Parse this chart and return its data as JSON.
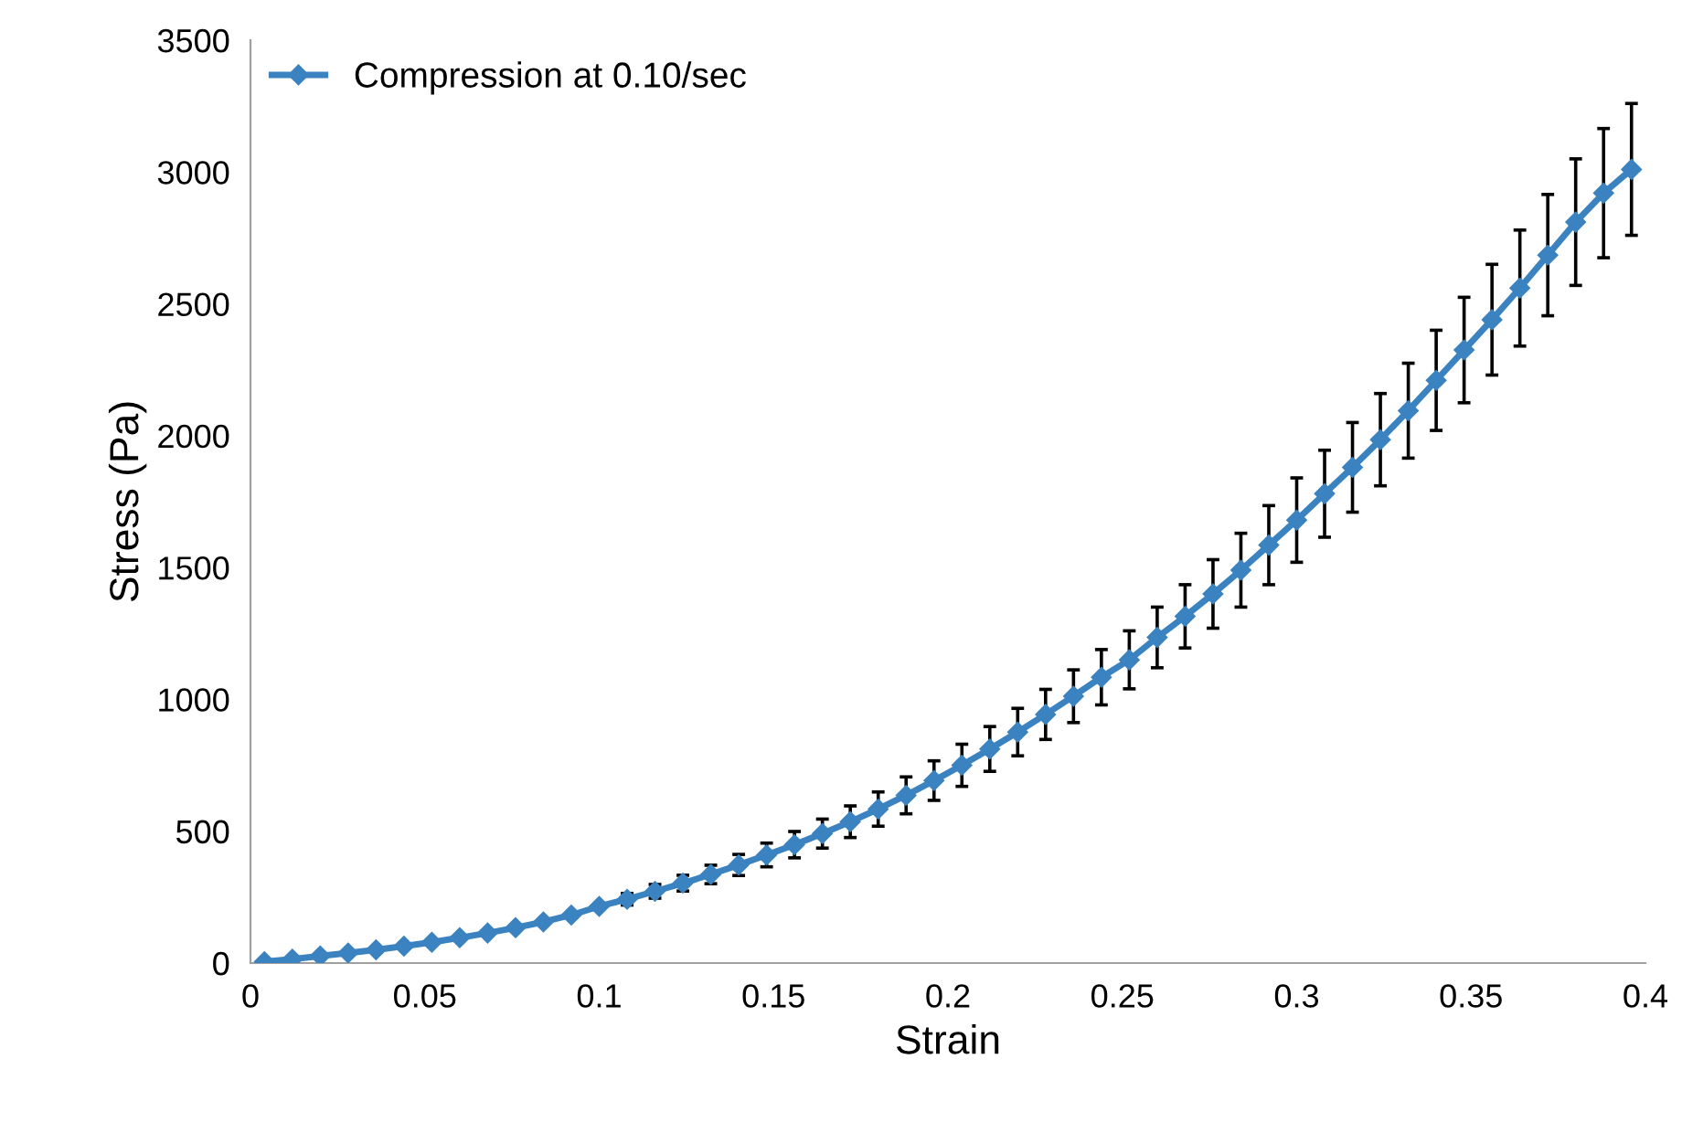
{
  "chart_data": {
    "type": "line",
    "xlabel": "Strain",
    "ylabel": "Stress (Pa)",
    "x": [
      0.004,
      0.012,
      0.02,
      0.028,
      0.036,
      0.044,
      0.052,
      0.06,
      0.068,
      0.076,
      0.084,
      0.092,
      0.1,
      0.108,
      0.116,
      0.124,
      0.132,
      0.14,
      0.148,
      0.156,
      0.164,
      0.172,
      0.18,
      0.188,
      0.196,
      0.204,
      0.212,
      0.22,
      0.228,
      0.236,
      0.244,
      0.252,
      0.26,
      0.268,
      0.276,
      0.284,
      0.292,
      0.3,
      0.308,
      0.316,
      0.324,
      0.332,
      0.34,
      0.348,
      0.356,
      0.364,
      0.372,
      0.38,
      0.388,
      0.396
    ],
    "series": [
      {
        "name": "Compression at 0.10/sec",
        "color": "#3b83c0",
        "values": [
          5,
          15,
          27,
          38,
          50,
          64,
          79,
          96,
          114,
          134,
          156,
          182,
          215,
          242,
          272,
          303,
          336,
          372,
          410,
          449,
          491,
          536,
          584,
          636,
          692,
          750,
          812,
          876,
          943,
          1012,
          1084,
          1150,
          1235,
          1315,
          1400,
          1490,
          1585,
          1680,
          1780,
          1880,
          1985,
          2095,
          2210,
          2325,
          2440,
          2560,
          2685,
          2810,
          2920,
          3010
        ],
        "errors": [
          null,
          null,
          null,
          null,
          null,
          null,
          null,
          null,
          null,
          null,
          null,
          null,
          null,
          22,
          26,
          30,
          35,
          40,
          45,
          50,
          55,
          60,
          65,
          70,
          75,
          80,
          85,
          90,
          95,
          100,
          105,
          110,
          115,
          120,
          130,
          140,
          150,
          160,
          165,
          170,
          175,
          180,
          190,
          200,
          210,
          220,
          230,
          240,
          245,
          250
        ]
      }
    ],
    "xlim": [
      0,
      0.4
    ],
    "xticks": [
      0,
      0.05,
      0.1,
      0.15,
      0.2,
      0.25,
      0.3,
      0.35,
      0.4
    ],
    "ylim": [
      0,
      3500
    ],
    "yticks": [
      0,
      500,
      1000,
      1500,
      2000,
      2500,
      3000,
      3500
    ],
    "marker": "diamond",
    "line_style": "solid",
    "grid": false,
    "legend": "top left"
  }
}
